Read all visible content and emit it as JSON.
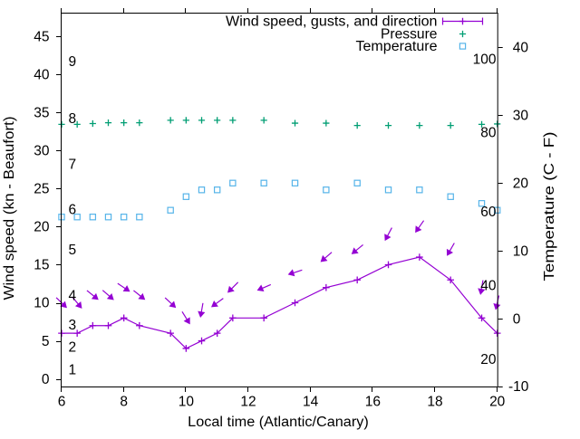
{
  "chart_data": {
    "type": "line",
    "title": "",
    "xlabel": "Local time (Atlantic/Canary)",
    "ylabel": "Wind speed (kn - Beaufort)",
    "y2label": "Temperature (C - F)",
    "x_range": [
      6,
      20
    ],
    "y1_range_kn": [
      -1,
      48
    ],
    "y2_range_c": [
      -10,
      45
    ],
    "x_ticks": [
      6,
      8,
      10,
      12,
      14,
      16,
      18,
      20
    ],
    "y1_ticks_kn": [
      0,
      5,
      10,
      15,
      20,
      25,
      30,
      35,
      40,
      45
    ],
    "y2_ticks_c": [
      -10,
      0,
      10,
      20,
      30,
      40
    ],
    "grid": false,
    "legend_position": "top-right-inside",
    "x": [
      6,
      6.5,
      7,
      7.5,
      8,
      8.5,
      9.5,
      10,
      10.5,
      11,
      11.5,
      12.5,
      13.5,
      14.5,
      15.5,
      16.5,
      17.5,
      18.5,
      19.5,
      20
    ],
    "series": [
      {
        "name": "Wind speed, gusts, and direction",
        "type": "linespoints-with-vectors",
        "marker": "plus",
        "color": "#9400D3",
        "axis": "left",
        "wind_speed_kn": [
          6,
          6,
          7,
          7,
          8,
          7,
          6,
          4,
          5,
          6,
          8,
          8,
          10,
          12,
          13,
          15,
          16,
          13,
          8,
          6
        ],
        "gust_kn": [
          10,
          10,
          11,
          11,
          12,
          11,
          10,
          8,
          9,
          10,
          12,
          12,
          14,
          16,
          17,
          19,
          20,
          17,
          12,
          10
        ],
        "gust_arrow_direction_deg": [
          134,
          140,
          129,
          131,
          124,
          129,
          133,
          148,
          190,
          234,
          225,
          247,
          252,
          229,
          231,
          208,
          215,
          210,
          190,
          193
        ]
      },
      {
        "name": "Pressure",
        "type": "points",
        "marker": "plus",
        "color": "#009E73",
        "axis": "left",
        "plotted_kn": [
          33.45,
          33.45,
          33.55,
          33.65,
          33.65,
          33.65,
          33.98,
          33.98,
          33.98,
          33.98,
          33.98,
          33.98,
          33.6,
          33.6,
          33.3,
          33.3,
          33.3,
          33.3,
          33.45,
          33.5
        ]
      },
      {
        "name": "Temperature",
        "type": "points",
        "marker": "open-square",
        "color": "#56B4E9",
        "axis": "right",
        "temperature_c": [
          15,
          15,
          15,
          15,
          15,
          15,
          16,
          18,
          19,
          19,
          20,
          20,
          20,
          19,
          20,
          19,
          19,
          18,
          17,
          16
        ]
      }
    ],
    "beaufort_scale_labels": [
      {
        "text": "1",
        "at_kn": 1.2
      },
      {
        "text": "2",
        "at_kn": 4.2
      },
      {
        "text": "3",
        "at_kn": 7.1
      },
      {
        "text": "4",
        "at_kn": 11.0
      },
      {
        "text": "5",
        "at_kn": 17.0
      },
      {
        "text": "6",
        "at_kn": 22.3
      },
      {
        "text": "7",
        "at_kn": 28.2
      },
      {
        "text": "8",
        "at_kn": 34.2
      },
      {
        "text": "9",
        "at_kn": 41.7
      }
    ],
    "fahrenheit_scale_labels": [
      {
        "text": "20",
        "at_c": -6.0
      },
      {
        "text": "40",
        "at_c": 4.9
      },
      {
        "text": "60",
        "at_c": 15.8
      },
      {
        "text": "80",
        "at_c": 27.5
      },
      {
        "text": "100",
        "at_c": 38.3
      }
    ]
  },
  "colors": {
    "background": "#ffffff",
    "border": "#000000",
    "text": "#000000",
    "wind": "#9400D3",
    "pressure": "#009E73",
    "temperature": "#56B4E9"
  }
}
